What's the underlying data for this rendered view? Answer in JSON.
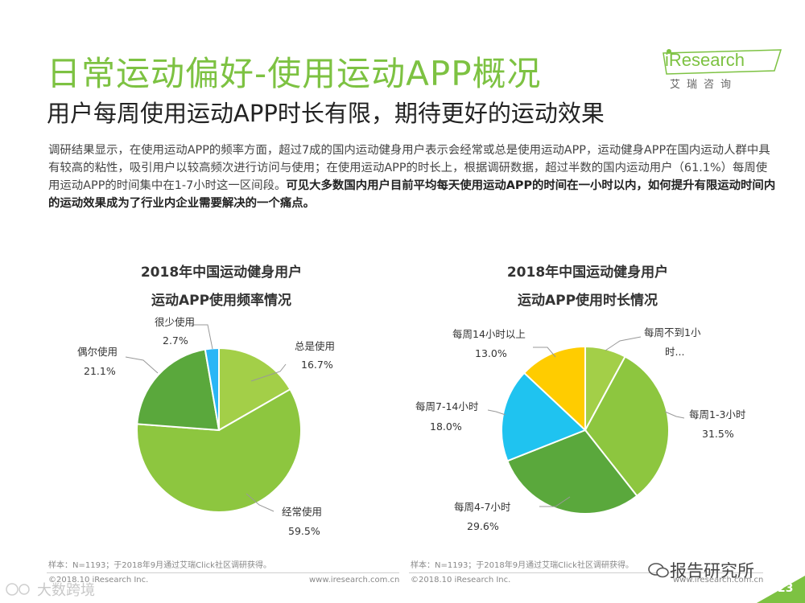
{
  "header": {
    "title": "日常运动偏好-使用运动APP概况",
    "subtitle": "用户每周使用运动APP时长有限，期待更好的运动效果"
  },
  "brand": {
    "name": "iResearch",
    "sub": "艾瑞咨询"
  },
  "body": {
    "normal": "调研结果显示，在使用运动APP的频率方面，超过7成的国内运动健身用户表示会经常或总是使用运动APP，运动健身APP在国内运动人群中具有较高的粘性，吸引用户以较高频次进行访问与使用；在使用运动APP的时长上，根据调研数据，超过半数的国内运动用户（61.1%）每周使用运动APP的时间集中在1-7小时这一区间段。",
    "bold": "可见大多数国内用户目前平均每天使用运动APP的时间在一小时以内，如何提升有限运动时间内的运动效果成为了行业内企业需要解决的一个痛点。"
  },
  "chart_data": [
    {
      "type": "pie",
      "title_line1": "2018年中国运动健身用户",
      "title_line2": "运动APP使用频率情况",
      "slices": [
        {
          "label": "总是使用",
          "value": 16.7,
          "value_text": "16.7%",
          "color": "#a3cf48"
        },
        {
          "label": "经常使用",
          "value": 59.5,
          "value_text": "59.5%",
          "color": "#8dc63f"
        },
        {
          "label": "偶尔使用",
          "value": 21.1,
          "value_text": "21.1%",
          "color": "#5aa83c"
        },
        {
          "label": "很少使用",
          "value": 2.7,
          "value_text": "2.7%",
          "color": "#29b6f6"
        }
      ],
      "source": "样本：N=1193；于2018年9月通过艾瑞Click社区调研获得。",
      "copyright": "©2018.10 iResearch Inc.",
      "site": "www.iresearch.com.cn"
    },
    {
      "type": "pie",
      "title_line1": "2018年中国运动健身用户",
      "title_line2": "运动APP使用时长情况",
      "slices": [
        {
          "label": "每周不到1小时...",
          "label_line1": "每周不到1小",
          "label_line2": "时...",
          "value": 7.9,
          "value_text": "",
          "color": "#a3cf48"
        },
        {
          "label": "每周1-3小时",
          "value": 31.5,
          "value_text": "31.5%",
          "color": "#8dc63f"
        },
        {
          "label": "每周4-7小时",
          "value": 29.6,
          "value_text": "29.6%",
          "color": "#5aa83c"
        },
        {
          "label": "每周7-14小时",
          "value": 18.0,
          "value_text": "18.0%",
          "color": "#1fc3f0"
        },
        {
          "label": "每周14小时以上",
          "value": 13.0,
          "value_text": "13.0%",
          "color": "#ffcc00"
        }
      ],
      "source": "样本：N=1193；于2018年9月通过艾瑞Click社区调研获得。",
      "copyright": "©2018.10 iResearch Inc.",
      "site": "www.iresearch.com.cn"
    }
  ],
  "watermarks": {
    "right": "报告研究所",
    "left": "大数跨境"
  },
  "page_number": "23"
}
